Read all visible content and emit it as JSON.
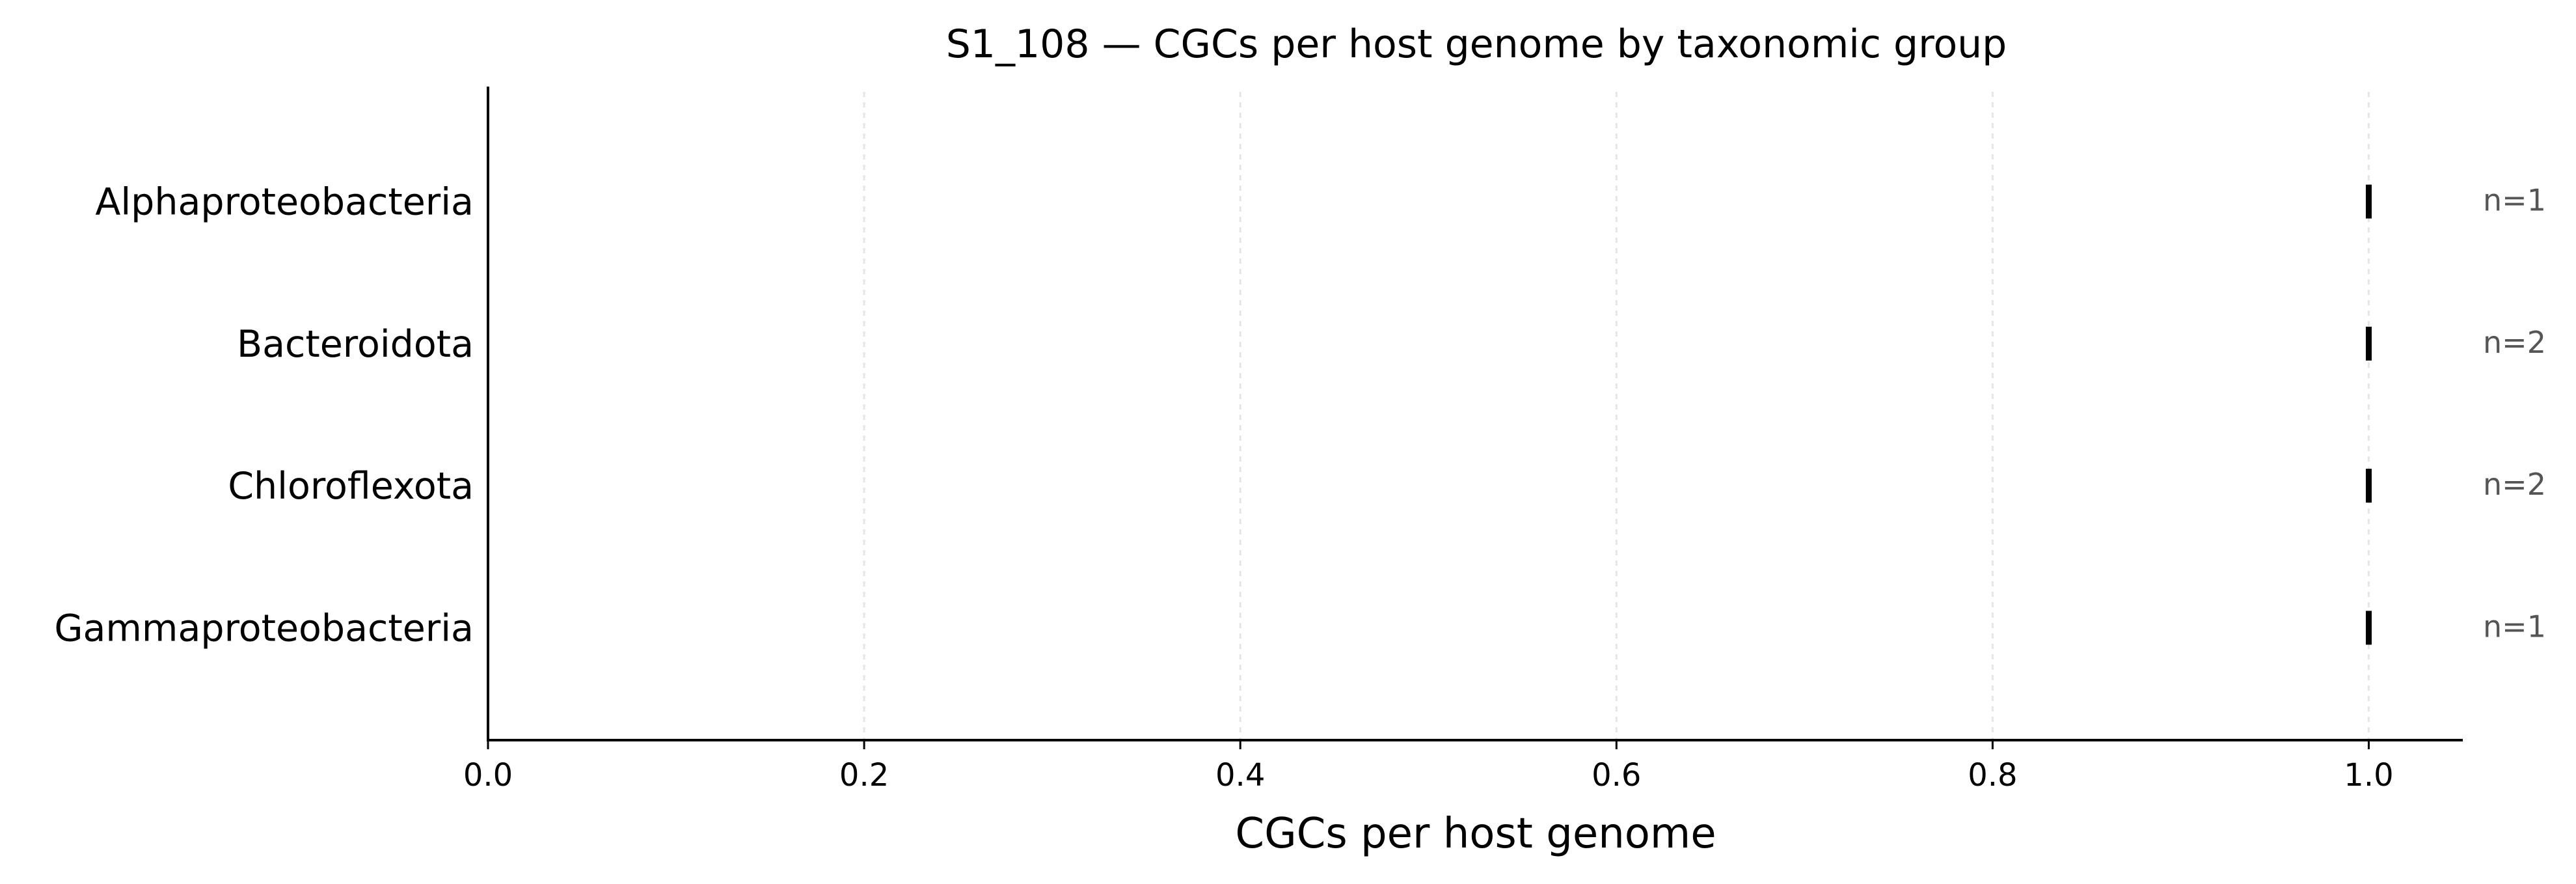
{
  "chart_data": {
    "type": "scatter",
    "title": "S1_108 — CGCs per host genome by taxonomic group",
    "xlabel": "CGCs per host genome",
    "ylabel": "",
    "xlim": [
      0,
      1.05
    ],
    "xticks": [
      0.0,
      0.2,
      0.4,
      0.6,
      0.8,
      1.0
    ],
    "xtick_labels": [
      "0.0",
      "0.2",
      "0.4",
      "0.6",
      "0.8",
      "1.0"
    ],
    "categories": [
      "Alphaproteobacteria",
      "Bacteroidota",
      "Chloroflexota",
      "Gammaproteobacteria"
    ],
    "values": [
      1.0,
      1.0,
      1.0,
      1.0
    ],
    "annotations": [
      "n=1",
      "n=2",
      "n=2",
      "n=1"
    ],
    "grid": "vertical dashed",
    "legend": "none",
    "colors": {
      "marker": "#000000",
      "axis": "#000000",
      "grid": "#e6e6e6",
      "annotation": "#555555"
    }
  }
}
